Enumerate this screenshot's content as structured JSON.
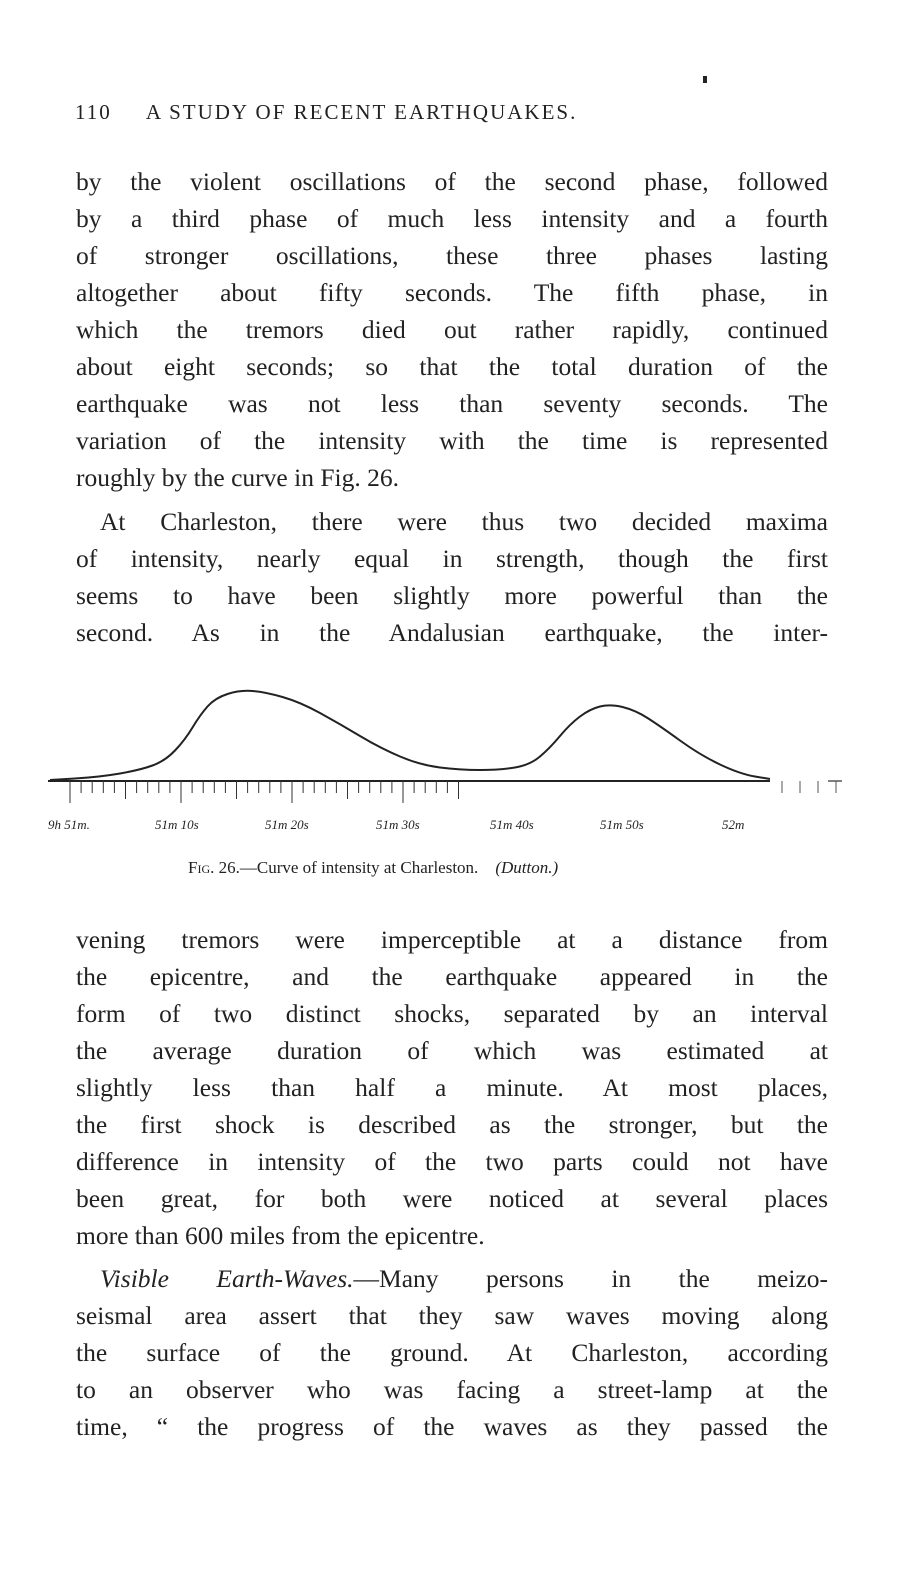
{
  "header": {
    "page_number": "110",
    "running_title": "A STUDY OF RECENT EARTHQUAKES."
  },
  "paragraph1": [
    "by the violent oscillations of the second phase, followed",
    "by a third phase of much less intensity and a fourth",
    "of stronger oscillations, these three phases lasting",
    "altogether about fifty seconds.  The fifth phase, in",
    "which the tremors died out rather rapidly, continued",
    "about eight seconds; so that the total duration of the",
    "earthquake was not less than seventy seconds.  The",
    "variation of the intensity with the time is represented",
    "roughly by the curve in Fig. 26."
  ],
  "paragraph2": [
    "At Charleston, there were thus two decided maxima",
    "of intensity, nearly equal in strength, though the first",
    "seems to have been slightly more powerful than the",
    "second.  As in the Andalusian earthquake, the inter-",
    "vening tremors were imperceptible at a distance from",
    "the epicentre, and the earthquake appeared in the",
    "form of two distinct shocks, separated by an interval",
    "the average duration of which was estimated at",
    "slightly less than half a minute.  At most places,",
    "the first shock is described as the stronger, but the",
    "difference in intensity of the two parts could not have",
    "been great, for both were noticed at several places",
    "more than 600 miles from the epicentre."
  ],
  "paragraph3": {
    "heading": "Visible Earth-Waves.",
    "lines": [
      "—Many persons in the meizo-",
      "seismal area assert that they saw waves moving along",
      "the surface of the ground.  At Charleston, according",
      "to an observer who was facing a street-lamp at the",
      "time, “ the progress of the waves as they passed the"
    ]
  },
  "figure": {
    "tick_labels": [
      "9h 51m.",
      "51m 10s",
      "51m 20s",
      "51m 30s",
      "51m 40s",
      "51m 50s",
      "52m"
    ],
    "caption_label": "Fig. 26.",
    "caption_text": "—Curve of intensity at Charleston.",
    "caption_credit": "(Dutton.)"
  }
}
